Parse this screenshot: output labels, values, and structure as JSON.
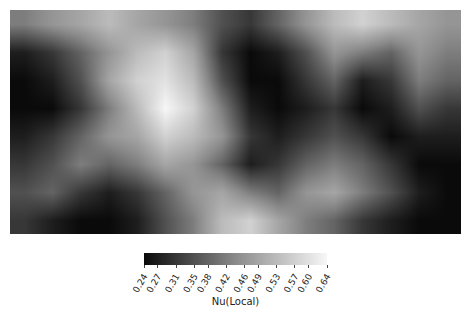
{
  "chart_data": {
    "type": "heatmap",
    "tick_labels": false,
    "cells": [
      [
        0.42,
        0.46,
        0.49,
        0.53,
        0.49,
        0.46,
        0.42,
        0.35,
        0.31,
        0.38,
        0.46,
        0.53,
        0.57,
        0.53,
        0.49,
        0.46
      ],
      [
        0.27,
        0.31,
        0.38,
        0.46,
        0.53,
        0.57,
        0.49,
        0.31,
        0.24,
        0.27,
        0.35,
        0.46,
        0.42,
        0.38,
        0.46,
        0.42
      ],
      [
        0.24,
        0.27,
        0.35,
        0.49,
        0.57,
        0.6,
        0.53,
        0.35,
        0.24,
        0.24,
        0.31,
        0.38,
        0.27,
        0.31,
        0.42,
        0.38
      ],
      [
        0.24,
        0.24,
        0.31,
        0.42,
        0.53,
        0.64,
        0.57,
        0.42,
        0.27,
        0.24,
        0.27,
        0.31,
        0.24,
        0.27,
        0.35,
        0.31
      ],
      [
        0.27,
        0.31,
        0.38,
        0.46,
        0.49,
        0.57,
        0.53,
        0.46,
        0.31,
        0.27,
        0.31,
        0.35,
        0.31,
        0.24,
        0.27,
        0.27
      ],
      [
        0.31,
        0.35,
        0.42,
        0.38,
        0.42,
        0.49,
        0.46,
        0.38,
        0.27,
        0.31,
        0.38,
        0.42,
        0.38,
        0.31,
        0.24,
        0.24
      ],
      [
        0.35,
        0.38,
        0.31,
        0.27,
        0.31,
        0.38,
        0.46,
        0.49,
        0.42,
        0.38,
        0.46,
        0.49,
        0.42,
        0.35,
        0.27,
        0.24
      ],
      [
        0.31,
        0.27,
        0.24,
        0.24,
        0.27,
        0.35,
        0.42,
        0.53,
        0.57,
        0.49,
        0.42,
        0.38,
        0.31,
        0.27,
        0.24,
        0.24
      ]
    ],
    "colorbar": {
      "title": "Nu(Local)",
      "range": [
        0.24,
        0.64
      ],
      "ticks": [
        0.24,
        0.27,
        0.31,
        0.35,
        0.38,
        0.42,
        0.46,
        0.49,
        0.53,
        0.57,
        {
          "value": 0.6,
          "label": "0.60"
        },
        0.64
      ]
    }
  }
}
